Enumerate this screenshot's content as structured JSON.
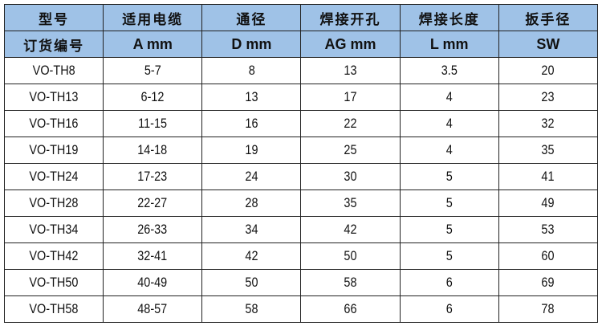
{
  "header_row1": [
    "型号",
    "适用电缆",
    "通径",
    "焊接开孔",
    "焊接长度",
    "扳手径"
  ],
  "header_row2": [
    "订货编号",
    "A mm",
    "D mm",
    "AG mm",
    "L mm",
    "SW"
  ],
  "colors": {
    "header_bg": "#9fc2e7",
    "border": "#222222"
  },
  "rows": [
    [
      "VO-TH8",
      "5-7",
      "8",
      "13",
      "3.5",
      "20"
    ],
    [
      "VO-TH13",
      "6-12",
      "13",
      "17",
      "4",
      "23"
    ],
    [
      "VO-TH16",
      "11-15",
      "16",
      "22",
      "4",
      "32"
    ],
    [
      "VO-TH19",
      "14-18",
      "19",
      "25",
      "4",
      "35"
    ],
    [
      "VO-TH24",
      "17-23",
      "24",
      "30",
      "5",
      "41"
    ],
    [
      "VO-TH28",
      "22-27",
      "28",
      "35",
      "5",
      "49"
    ],
    [
      "VO-TH34",
      "26-33",
      "34",
      "42",
      "5",
      "53"
    ],
    [
      "VO-TH42",
      "32-41",
      "42",
      "50",
      "5",
      "60"
    ],
    [
      "VO-TH50",
      "40-49",
      "50",
      "58",
      "6",
      "69"
    ],
    [
      "VO-TH58",
      "48-57",
      "58",
      "66",
      "6",
      "78"
    ]
  ]
}
